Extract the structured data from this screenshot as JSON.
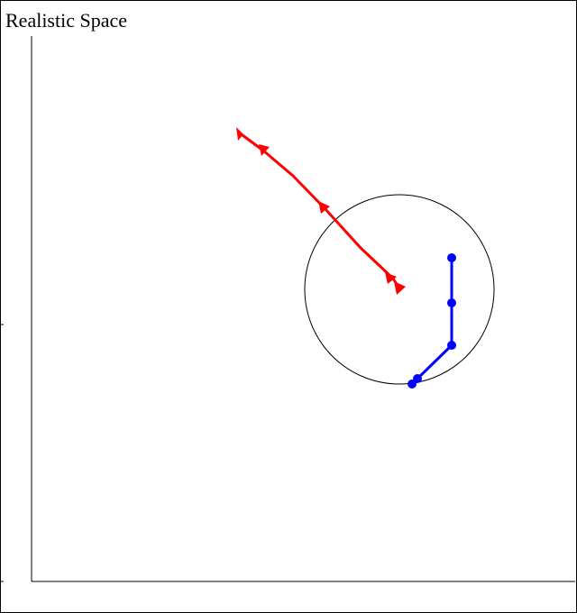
{
  "title": "Realistic Space",
  "colors": {
    "trajectory_a": "#ff0000",
    "trajectory_b": "#0000ff",
    "circle": "#000000",
    "axes": "#000000"
  },
  "icons": {
    "trajectory_a_marker": "triangle-arrow-icon",
    "trajectory_b_marker": "filled-circle-icon"
  }
}
